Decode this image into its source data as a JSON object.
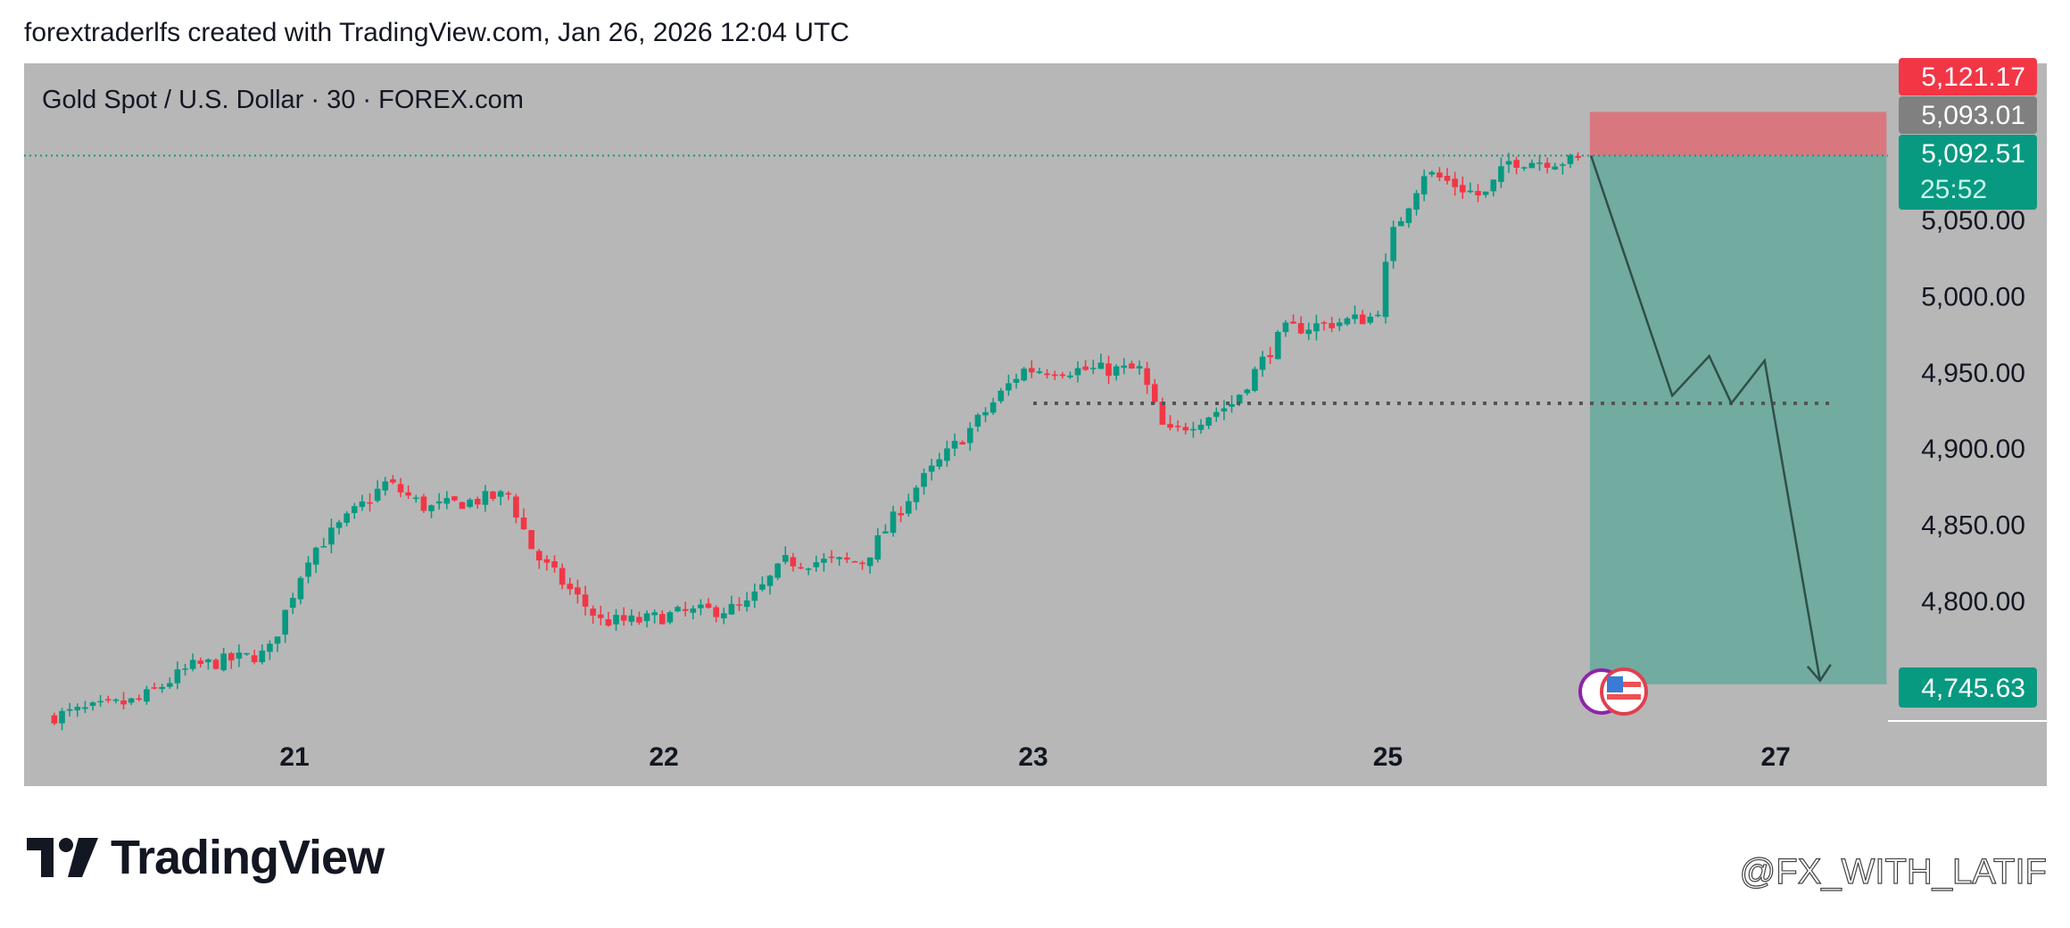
{
  "header": {
    "caption": "forextraderlfs created with TradingView.com, Jan 26, 2026 12:04 UTC"
  },
  "brand": {
    "logo_text": "TradingView",
    "watermark": "@FX_WITH_LATIF"
  },
  "colors": {
    "up": "#089981",
    "down": "#f23645",
    "background": "#b7b7b7",
    "target": "#089981",
    "stop": "#f23645"
  },
  "chart_data": {
    "type": "candlestick",
    "title": "Gold Spot / U.S. Dollar · 30 · FOREX.com",
    "x_unit": "trading days since Jan 21 (approx)",
    "x_ticks": [
      {
        "t": 0,
        "label": "21"
      },
      {
        "t": 1,
        "label": "22"
      },
      {
        "t": 2,
        "label": "23"
      },
      {
        "t": 2.96,
        "label": "25"
      },
      {
        "t": 4.01,
        "label": "27"
      }
    ],
    "y_ticks": [
      "5,050.00",
      "5,000.00",
      "4,950.00",
      "4,900.00",
      "4,850.00",
      "4,800.00"
    ],
    "y_tick_values": [
      5050,
      5000,
      4950,
      4900,
      4850,
      4800
    ],
    "ylim": [
      4700,
      5130
    ],
    "price_path": [
      [
        -0.65,
        4724
      ],
      [
        -0.4,
        4735
      ],
      [
        -0.26,
        4757
      ],
      [
        -0.05,
        4766
      ],
      [
        0.06,
        4831
      ],
      [
        0.27,
        4878
      ],
      [
        0.38,
        4861
      ],
      [
        0.6,
        4870
      ],
      [
        0.67,
        4831
      ],
      [
        0.85,
        4787
      ],
      [
        0.95,
        4787
      ],
      [
        1.06,
        4792
      ],
      [
        1.24,
        4796
      ],
      [
        1.35,
        4826
      ],
      [
        1.56,
        4826
      ],
      [
        1.7,
        4874
      ],
      [
        1.85,
        4913
      ],
      [
        1.99,
        4952
      ],
      [
        2.17,
        4952
      ],
      [
        2.31,
        4952
      ],
      [
        2.38,
        4909
      ],
      [
        2.56,
        4930
      ],
      [
        2.7,
        4978
      ],
      [
        2.95,
        4987
      ],
      [
        2.99,
        5039
      ],
      [
        3.08,
        5082
      ],
      [
        3.24,
        5065
      ],
      [
        3.31,
        5089
      ],
      [
        3.49,
        5089
      ]
    ],
    "price_labels": {
      "high": "5,121.17",
      "prev": "5,093.01",
      "last": "5,092.51",
      "countdown": "25:52",
      "target": "4,745.63"
    },
    "short_position": {
      "entry": 5092.51,
      "stop": 5121.17,
      "target": 4745.63,
      "t_start": 3.507,
      "t_end": 4.31
    },
    "projection": [
      [
        3.51,
        5092.51
      ],
      [
        3.73,
        4935
      ],
      [
        3.83,
        4961
      ],
      [
        3.89,
        4930
      ],
      [
        3.98,
        4958
      ],
      [
        4.13,
        4748
      ]
    ],
    "support_level": {
      "price": 4930,
      "t_start": 2.0,
      "t_end": 4.17
    }
  }
}
